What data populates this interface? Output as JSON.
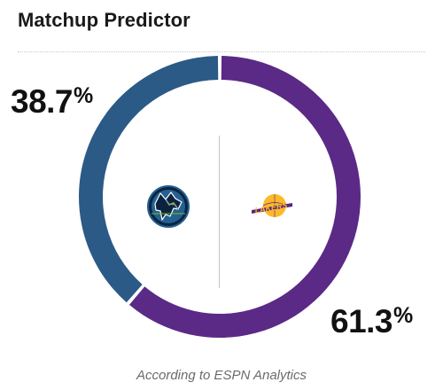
{
  "widget": {
    "title": "Matchup Predictor",
    "source": "According to ESPN Analytics"
  },
  "teams": {
    "left": {
      "logo_icon": "timberwolves-logo-icon",
      "win_pct": 38.7,
      "win_pct_text": "38.7",
      "pct_symbol": "%",
      "color": "#2b5a87"
    },
    "right": {
      "logo_icon": "lakers-logo-icon",
      "logo_text": "LAKERS",
      "win_pct": 61.3,
      "win_pct_text": "61.3",
      "pct_symbol": "%",
      "color": "#5a2a86"
    }
  },
  "chart_data": {
    "type": "pie",
    "style": "donut",
    "categories": [
      "left-team",
      "right-team"
    ],
    "values": [
      38.7,
      61.3
    ],
    "colors": [
      "#2b5a87",
      "#5a2a86"
    ],
    "title": "Matchup Predictor"
  }
}
